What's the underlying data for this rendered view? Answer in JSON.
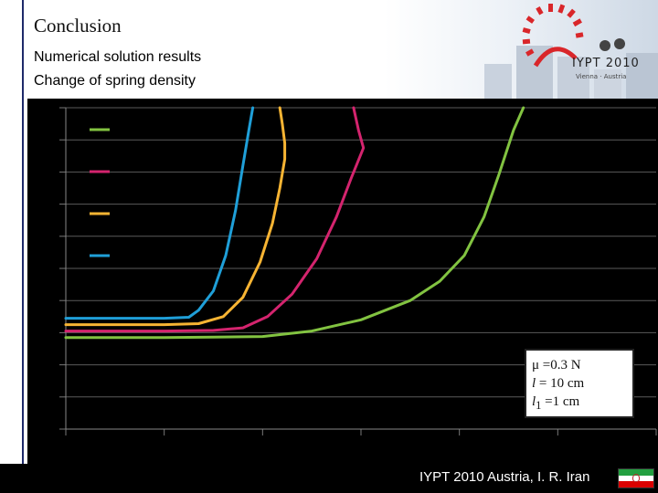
{
  "slide": {
    "title": "Conclusion",
    "subtitle_line1": "Numerical solution results",
    "subtitle_line2": "Change of spring density"
  },
  "logo": {
    "text": "IYPT 2010",
    "subtext": "Vienna · Austria",
    "icon": "iypt-sun-logo-icon"
  },
  "params": {
    "mu_symbol": "μ",
    "mu_value": " =0.3 N",
    "l_symbol": "l",
    "l_value": " = 10 cm",
    "l1_symbol": "l",
    "l1_sub": "1",
    "l1_value": " =1 cm"
  },
  "footer": {
    "text": "IYPT 2010 Austria, I. R. Iran",
    "flag_icon": "iran-flag-icon"
  },
  "colors": {
    "green": "#82c341",
    "magenta": "#d4246e",
    "orange": "#f7b433",
    "blue": "#1f9fd8",
    "chart_bg": "#000000",
    "grid": "#5a5a5a"
  },
  "chart_data": {
    "type": "line",
    "title": "",
    "xlabel": "",
    "ylabel": "",
    "xlim": [
      0,
      12
    ],
    "ylim": [
      0,
      10
    ],
    "grid": true,
    "legend": "top-left",
    "legend_entries_count": 4,
    "series": [
      {
        "color": "green",
        "points": [
          [
            0.0,
            2.85
          ],
          [
            1.0,
            2.85
          ],
          [
            2.0,
            2.85
          ],
          [
            3.0,
            2.86
          ],
          [
            4.0,
            2.88
          ],
          [
            5.0,
            3.05
          ],
          [
            6.0,
            3.4
          ],
          [
            7.0,
            4.0
          ],
          [
            7.6,
            4.6
          ],
          [
            8.1,
            5.4
          ],
          [
            8.5,
            6.6
          ],
          [
            8.8,
            7.9
          ],
          [
            9.1,
            9.3
          ],
          [
            9.3,
            10.0
          ]
        ]
      },
      {
        "color": "magenta",
        "points": [
          [
            0.0,
            3.05
          ],
          [
            1.0,
            3.05
          ],
          [
            2.0,
            3.05
          ],
          [
            3.0,
            3.07
          ],
          [
            3.6,
            3.15
          ],
          [
            4.1,
            3.5
          ],
          [
            4.6,
            4.2
          ],
          [
            5.1,
            5.3
          ],
          [
            5.5,
            6.6
          ],
          [
            5.8,
            7.8
          ],
          [
            6.05,
            8.75
          ],
          [
            5.95,
            9.3
          ],
          [
            5.85,
            10.0
          ]
        ]
      },
      {
        "color": "orange",
        "points": [
          [
            0.0,
            3.25
          ],
          [
            1.0,
            3.25
          ],
          [
            2.0,
            3.25
          ],
          [
            2.7,
            3.28
          ],
          [
            3.2,
            3.5
          ],
          [
            3.6,
            4.1
          ],
          [
            3.95,
            5.2
          ],
          [
            4.2,
            6.4
          ],
          [
            4.35,
            7.5
          ],
          [
            4.45,
            8.4
          ],
          [
            4.45,
            8.9
          ],
          [
            4.4,
            9.5
          ],
          [
            4.35,
            10.0
          ]
        ]
      },
      {
        "color": "blue",
        "points": [
          [
            0.0,
            3.45
          ],
          [
            1.0,
            3.45
          ],
          [
            2.0,
            3.45
          ],
          [
            2.5,
            3.48
          ],
          [
            2.7,
            3.7
          ],
          [
            3.0,
            4.3
          ],
          [
            3.25,
            5.4
          ],
          [
            3.45,
            6.8
          ],
          [
            3.6,
            8.2
          ],
          [
            3.72,
            9.3
          ],
          [
            3.8,
            10.0
          ]
        ]
      }
    ]
  }
}
